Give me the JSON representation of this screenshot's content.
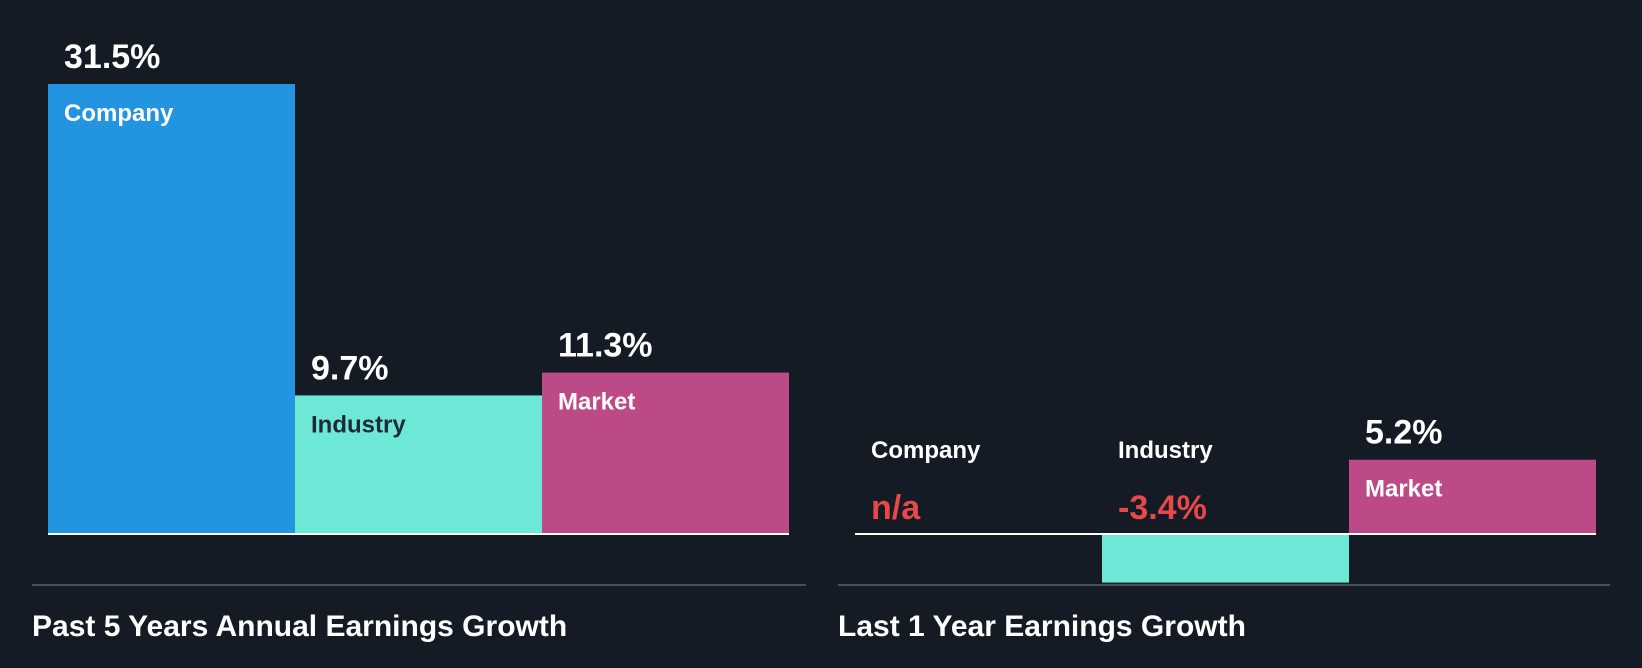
{
  "colors": {
    "background": "#151b24",
    "company": "#2394e0",
    "industry": "#6ee8d6",
    "market": "#bb4a87",
    "negative_text": "#e84848",
    "text": "#ffffff",
    "dark_label": "#1f2a36",
    "divider": "#4a4f57"
  },
  "chart_data": [
    {
      "type": "bar",
      "title": "Past 5 Years Annual Earnings Growth",
      "categories": [
        "Company",
        "Industry",
        "Market"
      ],
      "values": [
        31.5,
        9.7,
        11.3
      ],
      "value_labels": [
        "31.5%",
        "9.7%",
        "11.3%"
      ],
      "ylim": [
        0,
        31.5
      ]
    },
    {
      "type": "bar",
      "title": "Last 1 Year Earnings Growth",
      "categories": [
        "Company",
        "Industry",
        "Market"
      ],
      "values": [
        null,
        -3.4,
        5.2
      ],
      "value_labels": [
        "n/a",
        "-3.4%",
        "5.2%"
      ],
      "ylim": [
        -3.4,
        31.5
      ]
    }
  ]
}
